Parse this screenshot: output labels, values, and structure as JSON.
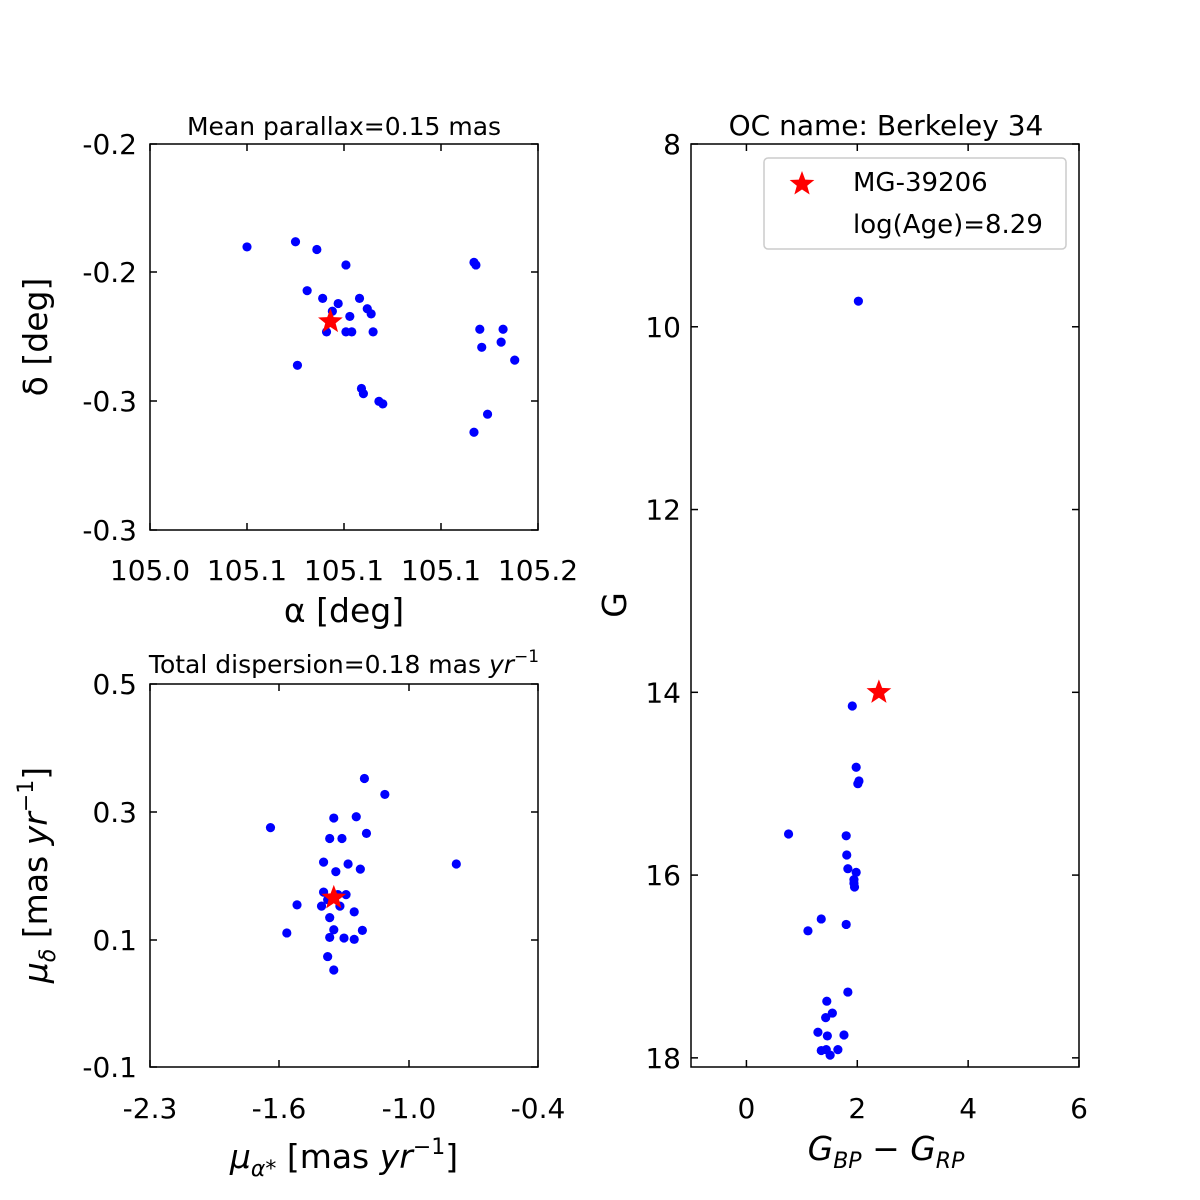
{
  "colors": {
    "member": "#0000ff",
    "target": "#ff0000",
    "axis": "#000000"
  },
  "chart_data": [
    {
      "type": "scatter",
      "title": "Mean parallax=0.15 mas",
      "xlabel": "α [deg]",
      "ylabel": "δ [deg]",
      "xlim": [
        105.0,
        105.2
      ],
      "ylim": [
        -0.3,
        -0.15
      ],
      "xticklabels": [
        "105.0",
        "105.1",
        "105.1",
        "105.1",
        "105.2"
      ],
      "yticklabels": [
        "-0.2",
        "-0.2",
        "-0.3",
        "-0.3"
      ],
      "series": [
        {
          "marker": "dot",
          "points": [
            [
              105.05,
              -0.19
            ],
            [
              105.075,
              -0.188
            ],
            [
              105.086,
              -0.191
            ],
            [
              105.101,
              -0.197
            ],
            [
              105.167,
              -0.196
            ],
            [
              105.168,
              -0.197
            ],
            [
              105.081,
              -0.207
            ],
            [
              105.097,
              -0.212
            ],
            [
              105.089,
              -0.21
            ],
            [
              105.108,
              -0.21
            ],
            [
              105.112,
              -0.214
            ],
            [
              105.094,
              -0.215
            ],
            [
              105.103,
              -0.217
            ],
            [
              105.114,
              -0.216
            ],
            [
              105.17,
              -0.222
            ],
            [
              105.182,
              -0.222
            ],
            [
              105.091,
              -0.223
            ],
            [
              105.101,
              -0.223
            ],
            [
              105.104,
              -0.223
            ],
            [
              105.115,
              -0.223
            ],
            [
              105.171,
              -0.229
            ],
            [
              105.181,
              -0.227
            ],
            [
              105.188,
              -0.234
            ],
            [
              105.076,
              -0.236
            ],
            [
              105.109,
              -0.245
            ],
            [
              105.11,
              -0.247
            ],
            [
              105.118,
              -0.25
            ],
            [
              105.12,
              -0.251
            ],
            [
              105.174,
              -0.255
            ],
            [
              105.167,
              -0.262
            ]
          ]
        },
        {
          "marker": "star",
          "points": [
            [
              105.093,
              -0.219
            ]
          ]
        }
      ]
    },
    {
      "type": "scatter",
      "title": "Total dispersion=0.18 mas yr⁻¹",
      "xlabel": "μα* [mas yr⁻¹]",
      "ylabel": "μδ [mas yr⁻¹]",
      "xlim": [
        -2.3,
        -0.4
      ],
      "ylim": [
        -0.1,
        0.5
      ],
      "xticklabels": [
        "-2.3",
        "-1.6",
        "-1.0",
        "-0.4"
      ],
      "yticklabels": [
        "0.5",
        "0.3",
        "0.1",
        "-0.1"
      ],
      "series": [
        {
          "marker": "dot",
          "points": [
            [
              -1.25,
              0.352
            ],
            [
              -1.15,
              0.327
            ],
            [
              -1.71,
              0.275
            ],
            [
              -1.4,
              0.29
            ],
            [
              -1.29,
              0.292
            ],
            [
              -1.42,
              0.258
            ],
            [
              -1.36,
              0.258
            ],
            [
              -1.24,
              0.266
            ],
            [
              -1.45,
              0.221
            ],
            [
              -1.33,
              0.218
            ],
            [
              -1.27,
              0.21
            ],
            [
              -1.39,
              0.206
            ],
            [
              -0.8,
              0.218
            ],
            [
              -1.45,
              0.174
            ],
            [
              -1.38,
              0.17
            ],
            [
              -1.34,
              0.17
            ],
            [
              -1.43,
              0.162
            ],
            [
              -1.58,
              0.154
            ],
            [
              -1.37,
              0.152
            ],
            [
              -1.46,
              0.152
            ],
            [
              -1.3,
              0.143
            ],
            [
              -1.42,
              0.134
            ],
            [
              -1.26,
              0.114
            ],
            [
              -1.4,
              0.115
            ],
            [
              -1.63,
              0.11
            ],
            [
              -1.42,
              0.103
            ],
            [
              -1.3,
              0.1
            ],
            [
              -1.35,
              0.102
            ],
            [
              -1.43,
              0.073
            ],
            [
              -1.4,
              0.052
            ]
          ]
        },
        {
          "marker": "star",
          "points": [
            [
              -1.4,
              0.165
            ]
          ]
        }
      ]
    },
    {
      "type": "scatter",
      "title": "OC name: Berkeley 34",
      "xlabel": "G_BP − G_RP",
      "ylabel": "G",
      "xlim": [
        -1.0,
        6.0
      ],
      "ylim": [
        18.1,
        8.0
      ],
      "xticks": [
        0,
        2,
        4,
        6
      ],
      "yticks": [
        8,
        10,
        12,
        14,
        16,
        18
      ],
      "xticklabels": [
        "0",
        "2",
        "4",
        "6"
      ],
      "yticklabels": [
        "8",
        "10",
        "12",
        "14",
        "16",
        "18"
      ],
      "legend": {
        "loc": "top-right",
        "entries": [
          "MG-39206",
          "log(Age)=8.29"
        ]
      },
      "series": [
        {
          "marker": "dot",
          "points": [
            [
              2.02,
              9.72
            ],
            [
              1.91,
              14.15
            ],
            [
              1.98,
              14.82
            ],
            [
              2.03,
              14.97
            ],
            [
              2.01,
              15.0
            ],
            [
              0.76,
              15.55
            ],
            [
              1.8,
              15.57
            ],
            [
              1.81,
              15.78
            ],
            [
              1.83,
              15.93
            ],
            [
              1.98,
              15.97
            ],
            [
              1.94,
              16.05
            ],
            [
              1.94,
              16.09
            ],
            [
              1.95,
              16.13
            ],
            [
              1.35,
              16.48
            ],
            [
              1.11,
              16.61
            ],
            [
              1.8,
              16.54
            ],
            [
              1.83,
              17.28
            ],
            [
              1.45,
              17.38
            ],
            [
              1.55,
              17.51
            ],
            [
              1.43,
              17.56
            ],
            [
              1.76,
              17.75
            ],
            [
              1.29,
              17.72
            ],
            [
              1.46,
              17.76
            ],
            [
              1.35,
              17.92
            ],
            [
              1.44,
              17.91
            ],
            [
              1.65,
              17.91
            ],
            [
              1.51,
              17.97
            ]
          ]
        },
        {
          "marker": "star",
          "points": [
            [
              2.39,
              14.0
            ]
          ]
        }
      ]
    }
  ]
}
